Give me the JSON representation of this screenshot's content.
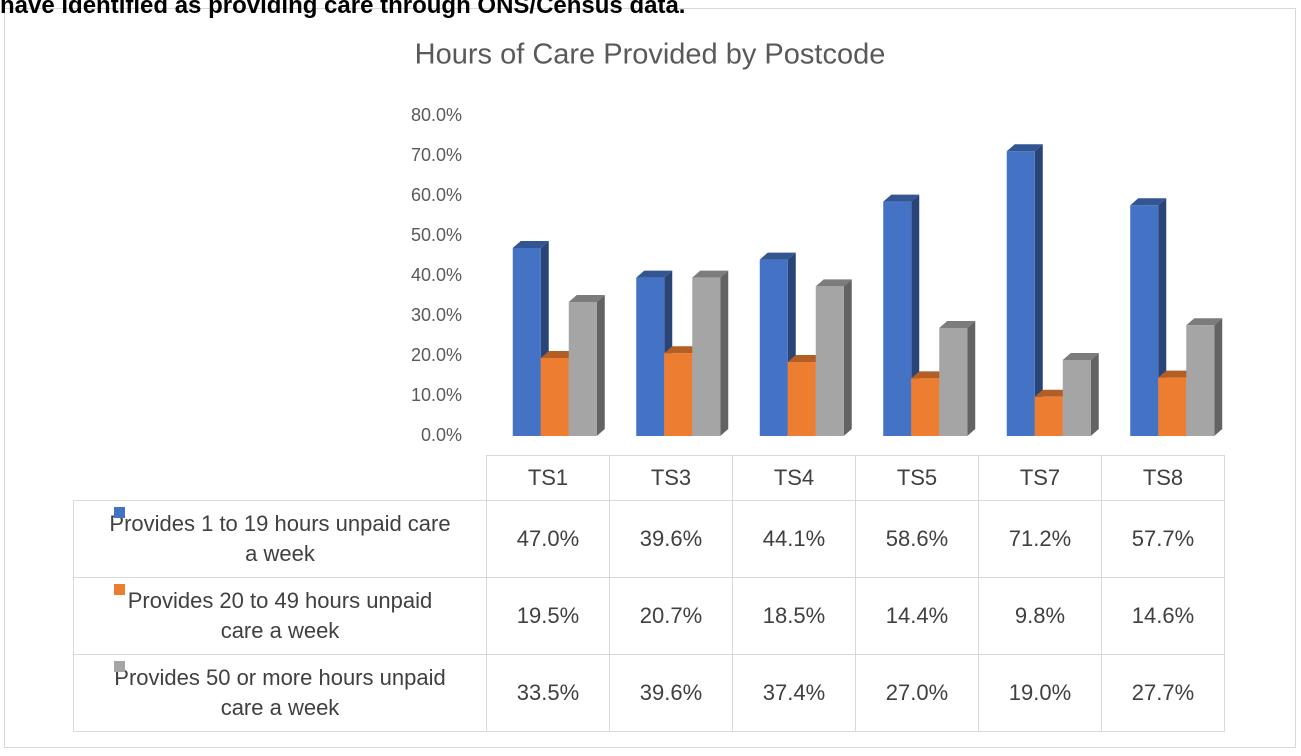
{
  "caption": "have identified as providing care through ONS/Census data.",
  "chart_data": {
    "type": "bar3d",
    "title": "Hours of Care Provided by Postcode",
    "categories": [
      "TS1",
      "TS3",
      "TS4",
      "TS5",
      "TS7",
      "TS8"
    ],
    "series": [
      {
        "name": "Provides 1 to 19 hours unpaid care a week",
        "color": "#4472c4",
        "values": [
          47.0,
          39.6,
          44.1,
          58.6,
          71.2,
          57.7
        ],
        "value_labels": [
          "47.0%",
          "39.6%",
          "44.1%",
          "58.6%",
          "71.2%",
          "57.7%"
        ]
      },
      {
        "name": "Provides 20 to 49 hours unpaid care a week",
        "color": "#ed7d31",
        "values": [
          19.5,
          20.7,
          18.5,
          14.4,
          9.8,
          14.6
        ],
        "value_labels": [
          "19.5%",
          "20.7%",
          "18.5%",
          "14.4%",
          "9.8%",
          "14.6%"
        ]
      },
      {
        "name": "Provides 50 or more hours unpaid care a week",
        "color": "#a5a5a5",
        "values": [
          33.5,
          39.6,
          37.4,
          27.0,
          19.0,
          27.7
        ],
        "value_labels": [
          "33.5%",
          "39.6%",
          "37.4%",
          "27.0%",
          "19.0%",
          "27.7%"
        ]
      }
    ],
    "ylim": [
      0,
      80
    ],
    "yticks": [
      {
        "value": 0,
        "label": "0.0%"
      },
      {
        "value": 10,
        "label": "10.0%"
      },
      {
        "value": 20,
        "label": "20.0%"
      },
      {
        "value": 30,
        "label": "30.0%"
      },
      {
        "value": 40,
        "label": "40.0%"
      },
      {
        "value": 50,
        "label": "50.0%"
      },
      {
        "value": 60,
        "label": "60.0%"
      },
      {
        "value": 70,
        "label": "70.0%"
      },
      {
        "value": 80,
        "label": "80.0%"
      }
    ],
    "legend": "table"
  }
}
